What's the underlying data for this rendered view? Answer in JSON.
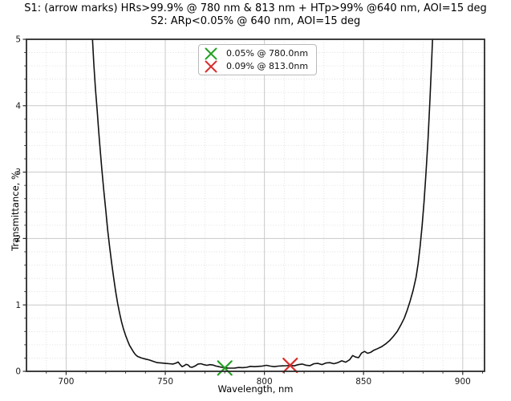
{
  "chart_data": {
    "type": "line",
    "title_line1": "S1: (arrow marks) HRs>99.9% @ 780 nm & 813 nm + HTp>99% @640 nm, AOI=15 deg",
    "title_line2": "S2: ARp<0.05% @ 640 nm, AOI=15 deg",
    "xlabel": "Wavelength, nm",
    "ylabel": "Transmittance, %",
    "xlim": [
      680,
      911
    ],
    "ylim": [
      0,
      5
    ],
    "xticks": [
      700,
      750,
      800,
      850,
      900
    ],
    "yticks": [
      0,
      1,
      2,
      3,
      4,
      5
    ],
    "minor_x_step": 10,
    "minor_y_step": 0.2,
    "grid": "both",
    "legend_position": "upper center",
    "colors": {
      "curve": "#111111",
      "major_grid": "#c9c9c9",
      "minor_grid": "#d9d9d9",
      "border": "#2a2a2a",
      "tick_text": "#1a1a1a",
      "marker_green": "#23a123",
      "marker_red": "#d92e2e"
    },
    "series": [
      {
        "name": "transmittance",
        "points": [
          [
            712.6,
            5.4
          ],
          [
            713.3,
            5.0
          ],
          [
            714.0,
            4.62
          ],
          [
            714.8,
            4.25
          ],
          [
            715.6,
            3.95
          ],
          [
            716.4,
            3.62
          ],
          [
            717.2,
            3.32
          ],
          [
            718.0,
            3.05
          ],
          [
            719.0,
            2.72
          ],
          [
            720.0,
            2.42
          ],
          [
            721.0,
            2.12
          ],
          [
            722.0,
            1.86
          ],
          [
            723.0,
            1.62
          ],
          [
            724.0,
            1.4
          ],
          [
            725.0,
            1.2
          ],
          [
            726.0,
            1.02
          ],
          [
            727.0,
            0.87
          ],
          [
            728.0,
            0.74
          ],
          [
            729.0,
            0.63
          ],
          [
            730.0,
            0.54
          ],
          [
            731.0,
            0.46
          ],
          [
            732.0,
            0.39
          ],
          [
            733.0,
            0.34
          ],
          [
            734.0,
            0.29
          ],
          [
            735.0,
            0.25
          ],
          [
            736.0,
            0.225
          ],
          [
            738.0,
            0.2
          ],
          [
            740.0,
            0.185
          ],
          [
            742.0,
            0.17
          ],
          [
            744.0,
            0.15
          ],
          [
            746.0,
            0.13
          ],
          [
            748.0,
            0.125
          ],
          [
            750.0,
            0.12
          ],
          [
            752.0,
            0.115
          ],
          [
            754.0,
            0.11
          ],
          [
            755.5,
            0.125
          ],
          [
            756.5,
            0.14
          ],
          [
            757.5,
            0.1
          ],
          [
            758.5,
            0.07
          ],
          [
            759.5,
            0.085
          ],
          [
            760.5,
            0.105
          ],
          [
            761.5,
            0.095
          ],
          [
            762.5,
            0.065
          ],
          [
            763.5,
            0.06
          ],
          [
            765.0,
            0.08
          ],
          [
            766.5,
            0.11
          ],
          [
            768.0,
            0.115
          ],
          [
            769.5,
            0.1
          ],
          [
            771.0,
            0.09
          ],
          [
            772.5,
            0.1
          ],
          [
            774.0,
            0.095
          ],
          [
            775.5,
            0.08
          ],
          [
            777.0,
            0.07
          ],
          [
            778.5,
            0.06
          ],
          [
            780.0,
            0.055
          ],
          [
            781.5,
            0.05
          ],
          [
            783.0,
            0.048
          ],
          [
            785.0,
            0.05
          ],
          [
            787.0,
            0.058
          ],
          [
            789.0,
            0.055
          ],
          [
            791.0,
            0.06
          ],
          [
            793.0,
            0.075
          ],
          [
            795.0,
            0.07
          ],
          [
            797.0,
            0.075
          ],
          [
            799.0,
            0.08
          ],
          [
            801.0,
            0.09
          ],
          [
            803.0,
            0.078
          ],
          [
            805.0,
            0.07
          ],
          [
            807.0,
            0.078
          ],
          [
            809.0,
            0.082
          ],
          [
            811.0,
            0.085
          ],
          [
            813.0,
            0.09
          ],
          [
            815.0,
            0.082
          ],
          [
            817.0,
            0.1
          ],
          [
            819.0,
            0.11
          ],
          [
            821.0,
            0.092
          ],
          [
            823.0,
            0.086
          ],
          [
            825.0,
            0.115
          ],
          [
            827.0,
            0.12
          ],
          [
            829.0,
            0.102
          ],
          [
            831.0,
            0.125
          ],
          [
            833.0,
            0.13
          ],
          [
            835.0,
            0.115
          ],
          [
            837.0,
            0.13
          ],
          [
            839.0,
            0.158
          ],
          [
            841.0,
            0.138
          ],
          [
            843.0,
            0.175
          ],
          [
            844.5,
            0.238
          ],
          [
            846.0,
            0.215
          ],
          [
            847.5,
            0.205
          ],
          [
            849.0,
            0.275
          ],
          [
            850.5,
            0.3
          ],
          [
            852.0,
            0.272
          ],
          [
            853.5,
            0.285
          ],
          [
            855.0,
            0.315
          ],
          [
            857.0,
            0.34
          ],
          [
            859.0,
            0.37
          ],
          [
            861.0,
            0.41
          ],
          [
            863.0,
            0.46
          ],
          [
            865.0,
            0.525
          ],
          [
            867.0,
            0.6
          ],
          [
            869.0,
            0.71
          ],
          [
            870.5,
            0.8
          ],
          [
            872.0,
            0.92
          ],
          [
            873.5,
            1.06
          ],
          [
            875.0,
            1.22
          ],
          [
            876.5,
            1.42
          ],
          [
            877.5,
            1.62
          ],
          [
            878.5,
            1.88
          ],
          [
            879.5,
            2.18
          ],
          [
            880.5,
            2.55
          ],
          [
            881.5,
            3.0
          ],
          [
            882.5,
            3.5
          ],
          [
            883.5,
            4.1
          ],
          [
            884.3,
            4.65
          ],
          [
            885.0,
            5.15
          ],
          [
            885.4,
            5.5
          ]
        ]
      }
    ],
    "markers": [
      {
        "x": 780.0,
        "y": 0.05,
        "color_key": "marker_green",
        "label": "0.05% @ 780.0nm"
      },
      {
        "x": 813.0,
        "y": 0.09,
        "color_key": "marker_red",
        "label": "0.09% @ 813.0nm"
      }
    ]
  }
}
